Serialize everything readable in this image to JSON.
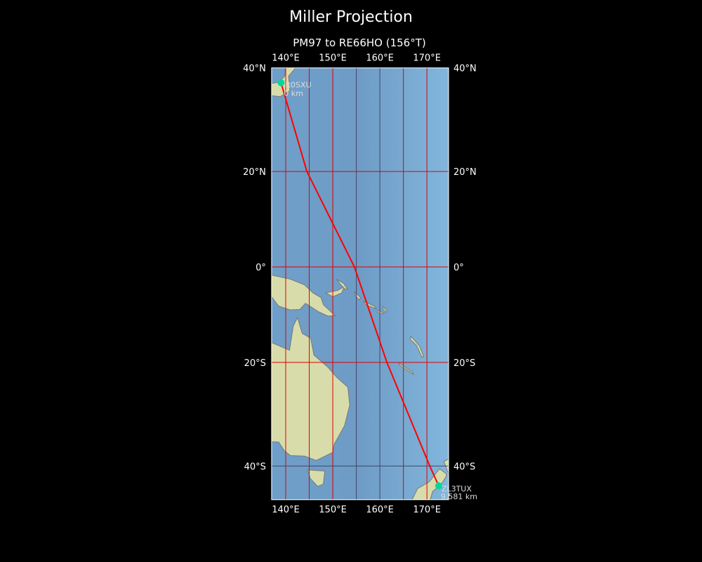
{
  "title": "Miller Projection",
  "subtitle": "PM97 to RE66HO (156°T)",
  "map": {
    "projection": "Miller",
    "extent": {
      "lon": [
        137,
        174.6
      ],
      "lat": [
        -45.9,
        40
      ]
    },
    "lon_ticks": [
      {
        "value": 140,
        "label": "140°E"
      },
      {
        "value": 150,
        "label": "150°E"
      },
      {
        "value": 160,
        "label": "160°E"
      },
      {
        "value": 170,
        "label": "170°E"
      }
    ],
    "lat_ticks": [
      {
        "value": 40,
        "label": "40°N"
      },
      {
        "value": 20,
        "label": "20°N"
      },
      {
        "value": 0,
        "label": "0°"
      },
      {
        "value": -20,
        "label": "20°S"
      },
      {
        "value": -40,
        "label": "40°S"
      }
    ],
    "gridlines": {
      "lon": [
        140,
        145,
        150,
        155,
        160,
        165,
        170
      ],
      "lat": [
        20,
        0,
        -20,
        -40
      ]
    },
    "colors": {
      "route": "#ff0000",
      "marker": "#00d89a",
      "grid_red": "#e00000",
      "grid_dark": "#444466",
      "ocean": "#7aaed4",
      "land": "#d8dcaa"
    },
    "route": [
      [
        139.0,
        37.3
      ],
      [
        144.5,
        20
      ],
      [
        154.6,
        0
      ],
      [
        161.5,
        -20
      ],
      [
        170.6,
        -40
      ],
      [
        172.5,
        -43.5
      ]
    ],
    "start": {
      "label": "R0SXU",
      "distance": "0 km",
      "lon": 139.0,
      "lat": 37.3
    },
    "end": {
      "label": "ZL3TUX",
      "distance": "9,581 km",
      "lon": 172.5,
      "lat": -43.5
    }
  }
}
